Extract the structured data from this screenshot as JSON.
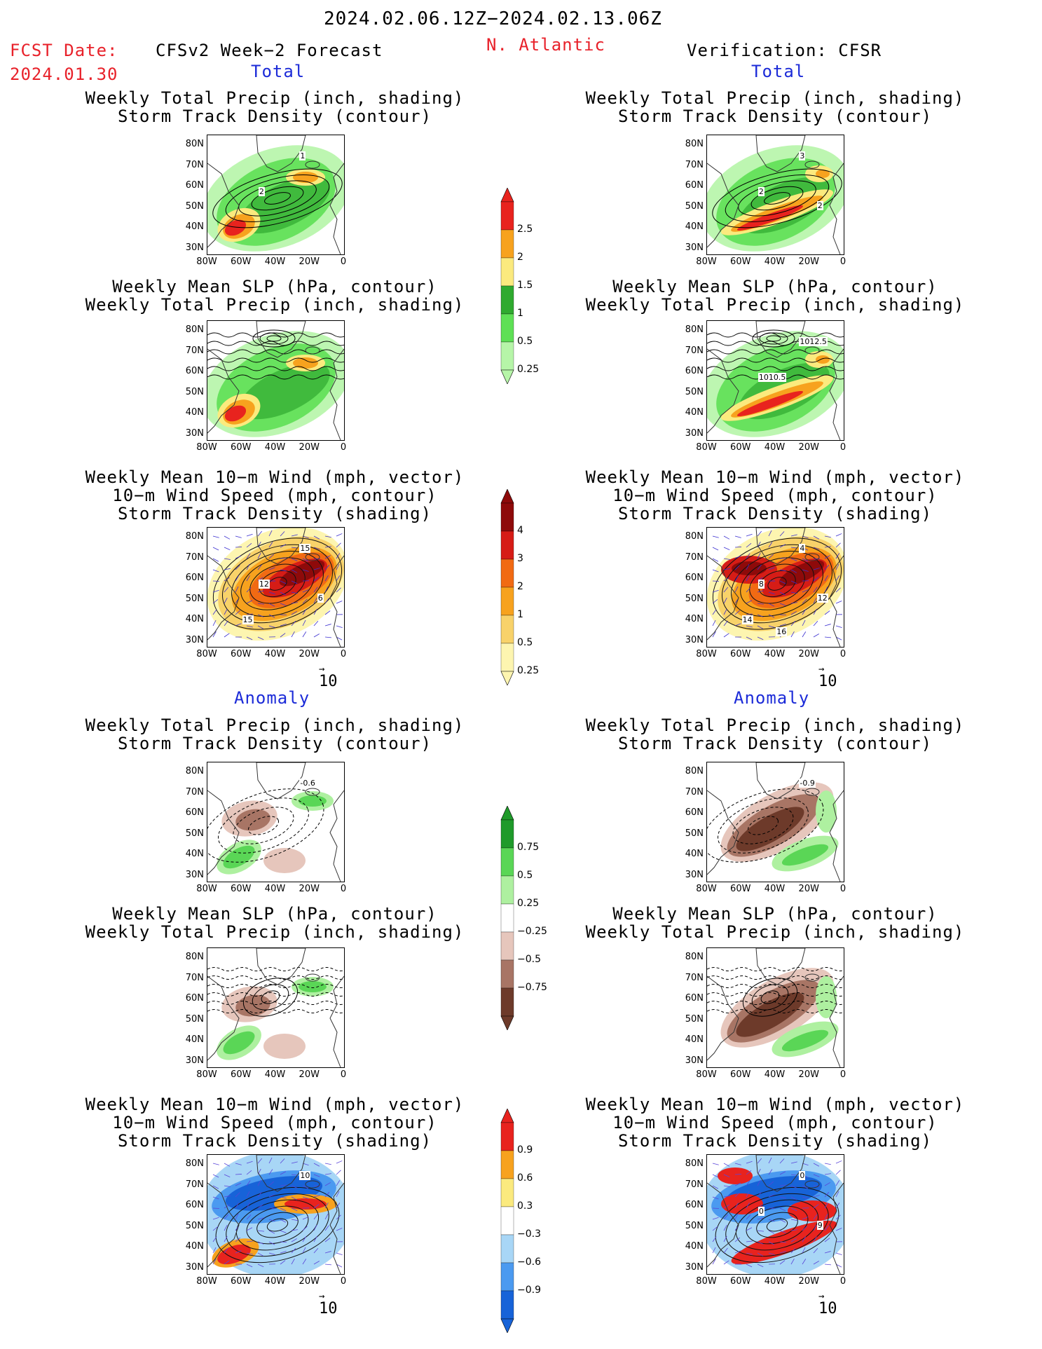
{
  "header": {
    "date_range": "2024.02.06.12Z−2024.02.13.06Z",
    "fcst_label": "FCST Date:",
    "fcst_date": "2024.01.30",
    "model_title": "CFSv2 Week−2 Forecast",
    "region": "N. Atlantic",
    "verification": "Verification: CFSR"
  },
  "sections": {
    "total": "Total",
    "anomaly": "Anomaly"
  },
  "panel_titles": {
    "precip_storm": [
      "Weekly Total Precip (inch, shading)",
      "Storm Track Density (contour)"
    ],
    "slp_precip": [
      "Weekly Mean SLP (hPa, contour)",
      "Weekly Total Precip (inch, shading)"
    ],
    "wind_storm": [
      "Weekly Mean 10−m Wind (mph, vector)",
      "10−m Wind Speed (mph, contour)",
      "Storm Track Density (shading)"
    ]
  },
  "axes": {
    "lat": [
      "80N",
      "70N",
      "60N",
      "50N",
      "40N",
      "30N"
    ],
    "lon": [
      "80W",
      "60W",
      "40W",
      "20W",
      "0"
    ]
  },
  "ref_vector": "10",
  "contour_labels": {
    "f_total_precip": [
      "1",
      "2"
    ],
    "v_total_precip": [
      "3",
      "2",
      "2"
    ],
    "v_total_slp": [
      "1012.5",
      "1010.5"
    ],
    "f_total_wind": [
      "15",
      "12",
      "6",
      "15"
    ],
    "v_total_wind": [
      "4",
      "8",
      "12",
      "14",
      "16"
    ],
    "f_anom_precip": [
      "-0.6"
    ],
    "v_anom_precip": [
      "-0.9"
    ],
    "f_anom_wind": [
      "10"
    ],
    "v_anom_wind": [
      "0",
      "0",
      "9"
    ]
  },
  "colorbars": {
    "precip_total": {
      "colors": [
        "#b6f5a8",
        "#5ee055",
        "#2faa2f",
        "#fbea7e",
        "#f7a21e",
        "#e8231e"
      ],
      "labels": [
        "2.5",
        "2",
        "1.5",
        "1",
        "0.5",
        "0.25"
      ]
    },
    "storm_total": {
      "colors": [
        "#fdf5b0",
        "#f8d26a",
        "#f7a21e",
        "#f16a13",
        "#d61c16",
        "#8e0a0a"
      ],
      "labels": [
        "4",
        "3",
        "2",
        "1",
        "0.5",
        "0.25"
      ]
    },
    "precip_anom": {
      "colors": [
        "#6d3a2a",
        "#a87565",
        "#e6c6bc",
        "#ffffff",
        "#aef0a0",
        "#5ad656",
        "#1f9a2a"
      ],
      "labels": [
        "0.75",
        "0.5",
        "0.25",
        "−0.25",
        "−0.5",
        "−0.75"
      ]
    },
    "storm_anom": {
      "colors": [
        "#1763d8",
        "#4b9af0",
        "#a8d6f6",
        "#ffffff",
        "#fbea7e",
        "#f7a21e",
        "#e8231e"
      ],
      "labels": [
        "0.9",
        "0.6",
        "0.3",
        "−0.3",
        "−0.6",
        "−0.9"
      ]
    }
  }
}
